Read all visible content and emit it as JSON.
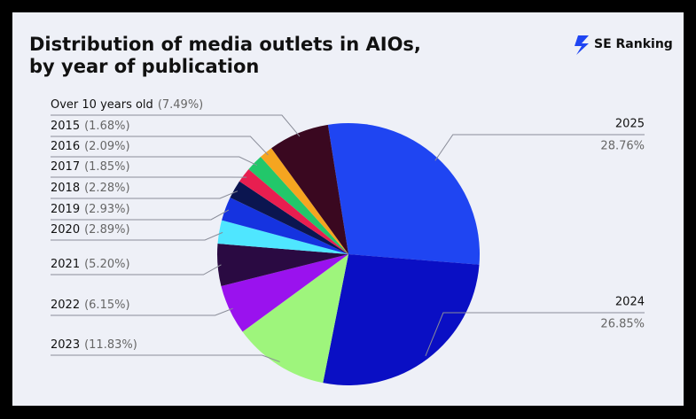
{
  "chart_data": {
    "type": "pie",
    "title_lines": [
      "Distribution of media outlets in AIOs,",
      "by year of publication"
    ],
    "brand": "SE Ranking",
    "categories": [
      "2025",
      "2024",
      "2023",
      "2022",
      "2021",
      "2020",
      "2019",
      "2018",
      "2017",
      "2016",
      "2015",
      "Over 10 years old"
    ],
    "values": [
      28.76,
      26.85,
      11.83,
      6.15,
      5.2,
      2.89,
      2.93,
      2.28,
      1.85,
      2.09,
      1.68,
      7.49
    ],
    "value_labels": [
      "28.76%",
      "26.85%",
      "(11.83%)",
      "(6.15%)",
      "(5.20%)",
      "(2.89%)",
      "(2.93%)",
      "(2.28%)",
      "(1.85%)",
      "(2.09%)",
      "(1.68%)",
      "(7.49%)"
    ],
    "colors": [
      "#1f45f2",
      "#0a0fc4",
      "#9ef57c",
      "#9a12ee",
      "#2a0a42",
      "#4fe6ff",
      "#1533e0",
      "#0b1550",
      "#e81e50",
      "#22c76a",
      "#f5a520",
      "#3a0820"
    ]
  }
}
